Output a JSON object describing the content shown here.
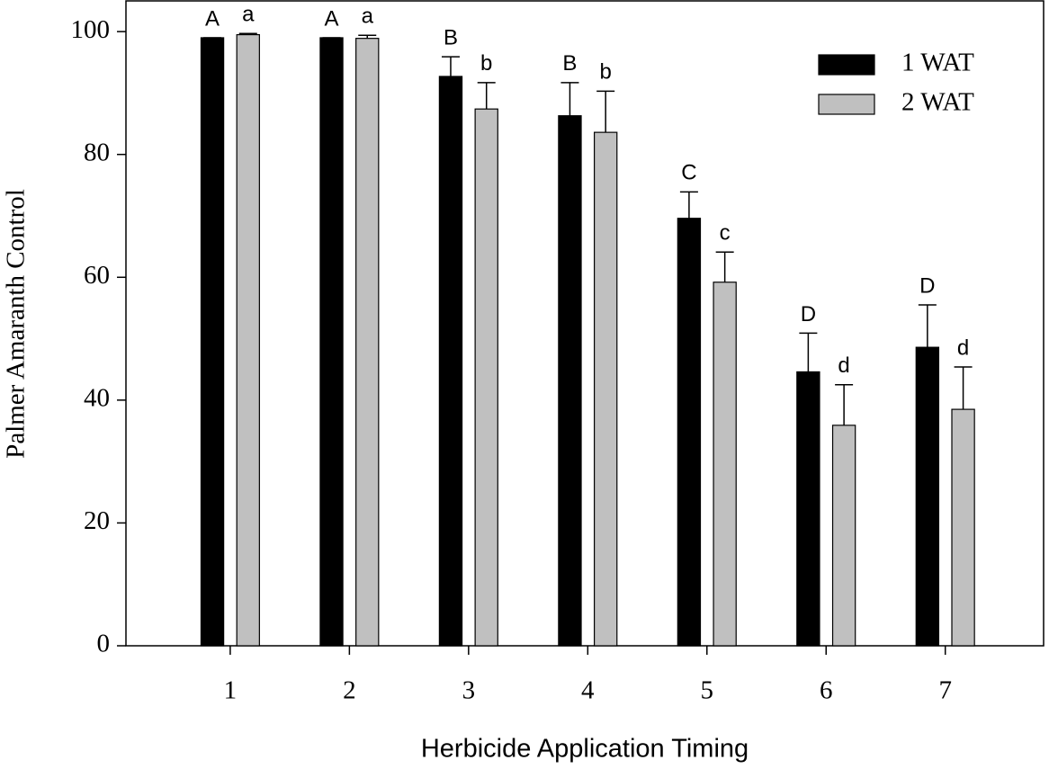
{
  "chart_data": {
    "type": "bar",
    "x_label": "Herbicide Application Timing",
    "y_label": "Palmer Amaranth Control",
    "x": [
      1,
      2,
      3,
      4,
      5,
      6,
      7
    ],
    "xlim": [
      0.125,
      7.825
    ],
    "xticks": [
      1,
      2,
      3,
      4,
      5,
      6,
      7
    ],
    "ylim": [
      0,
      105
    ],
    "yticks": [
      0,
      20,
      40,
      60,
      80,
      100
    ],
    "legend": "upper right",
    "series": [
      {
        "name": "1 WAT",
        "color": "#000000",
        "values": [
          99,
          99,
          92.7,
          86.3,
          69.6,
          44.6,
          48.6
        ],
        "errors": [
          0,
          0,
          3.2,
          5.4,
          4.3,
          6.3,
          6.9
        ],
        "labels": [
          "A",
          "A",
          "B",
          "B",
          "C",
          "D",
          "D"
        ]
      },
      {
        "name": "2 WAT",
        "color": "#c0c0c0",
        "values": [
          99.5,
          98.9,
          87.4,
          83.6,
          59.2,
          35.9,
          38.5
        ],
        "errors": [
          0.2,
          0.5,
          4.3,
          6.7,
          4.9,
          6.6,
          6.9
        ],
        "labels": [
          "a",
          "a",
          "b",
          "b",
          "c",
          "d",
          "d"
        ]
      }
    ]
  }
}
